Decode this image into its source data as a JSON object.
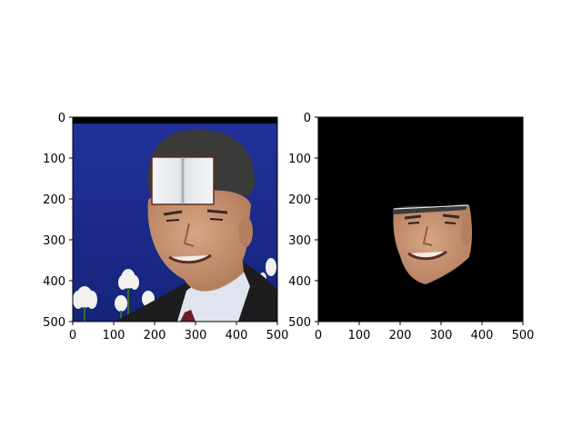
{
  "figure": {
    "panels": [
      {
        "id": "left",
        "image_description": "portrait photo, white open-book graphic overlay on forehead, blue background with white flowers",
        "x_ticks": [
          "0",
          "100",
          "200",
          "300",
          "400",
          "500"
        ],
        "y_ticks": [
          "0",
          "100",
          "200",
          "300",
          "400",
          "500"
        ]
      },
      {
        "id": "right",
        "image_description": "segmented face region on black background",
        "x_ticks": [
          "0",
          "100",
          "200",
          "300",
          "400",
          "500"
        ],
        "y_ticks": [
          "0",
          "100",
          "200",
          "300",
          "400",
          "500"
        ]
      }
    ]
  },
  "colors": {
    "photo_background": "#1e2f8f",
    "mask_background": "#000000",
    "skin": "#c89370",
    "hair": "#3a3a38",
    "suit": "#1d1d20",
    "shirt": "#dfe4ee",
    "tie": "#6b1e24",
    "book_overlay": "#eef0f3"
  }
}
